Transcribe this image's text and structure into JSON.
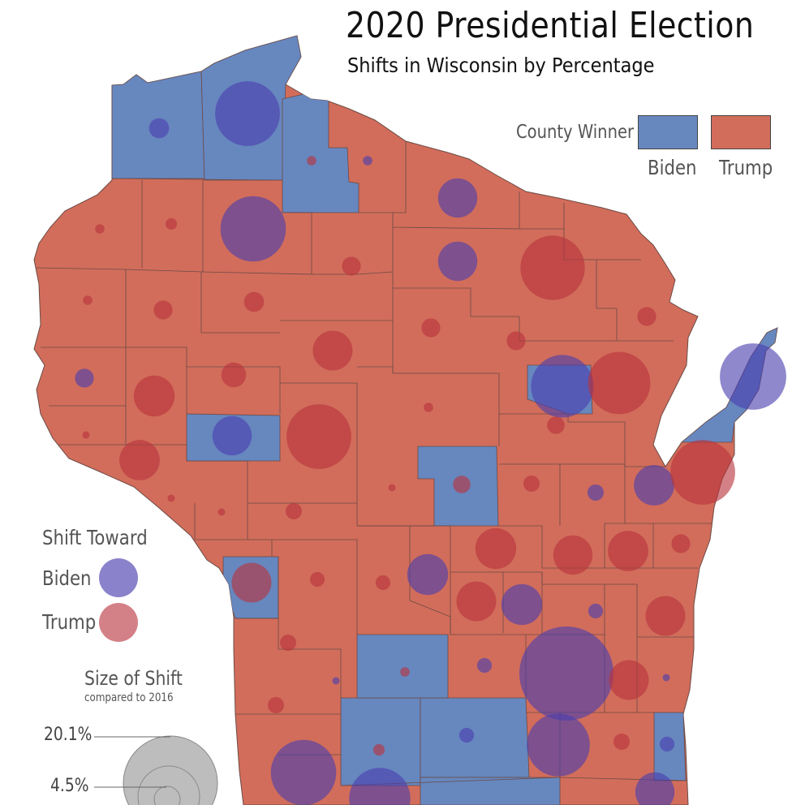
{
  "title": "2020 Presidential Election",
  "subtitle": "Shifts in Wisconsin by Percentage",
  "colors": {
    "biden_fill": "#6787bf",
    "trump_fill": "#d26d5b",
    "county_border": "#6b4a44",
    "shift_biden": "#4b3fae",
    "shift_trump": "#b8333d",
    "legend_circle": "#b9b9b9"
  },
  "legend": {
    "winner_title": "County Winner",
    "biden_label": "Biden",
    "trump_label": "Trump",
    "shift_title": "Shift Toward",
    "shift_biden_label": "Biden",
    "shift_trump_label": "Trump",
    "size_title": "Size of Shift",
    "size_subtitle": "compared to 2016",
    "size_values": [
      "20.1%",
      "4.5%"
    ]
  },
  "shift_bubbles": [
    {
      "toward": "Biden",
      "shift_pct": 0.9
    },
    {
      "toward": "Biden",
      "shift_pct": 9.5
    },
    {
      "toward": "Trump",
      "shift_pct": 0.2
    },
    {
      "toward": "Biden",
      "shift_pct": 0.2
    },
    {
      "toward": "Biden",
      "shift_pct": 3.5
    },
    {
      "toward": "Trump",
      "shift_pct": 0.2
    },
    {
      "toward": "Trump",
      "shift_pct": 0.3
    },
    {
      "toward": "Biden",
      "shift_pct": 9.7
    },
    {
      "toward": "Biden",
      "shift_pct": 3.5
    },
    {
      "toward": "Trump",
      "shift_pct": 0.8
    },
    {
      "toward": "Trump",
      "shift_pct": 9.4
    },
    {
      "toward": "Trump",
      "shift_pct": 0.2
    },
    {
      "toward": "Trump",
      "shift_pct": 0.8
    },
    {
      "toward": "Trump",
      "shift_pct": 0.9
    },
    {
      "toward": "Trump",
      "shift_pct": 0.8
    },
    {
      "toward": "Trump",
      "shift_pct": 0.8
    },
    {
      "toward": "Trump",
      "shift_pct": 0.8
    },
    {
      "toward": "Trump",
      "shift_pct": 3.6
    },
    {
      "toward": "Trump",
      "shift_pct": 1.4
    },
    {
      "toward": "Biden",
      "shift_pct": 0.8
    },
    {
      "toward": "Trump",
      "shift_pct": 3.8
    },
    {
      "toward": "Trump",
      "shift_pct": 0.2
    },
    {
      "toward": "Biden",
      "shift_pct": 8.9
    },
    {
      "toward": "Trump",
      "shift_pct": 8.8
    },
    {
      "toward": "Biden",
      "shift_pct": 10.0
    },
    {
      "toward": "Trump",
      "shift_pct": 0.1
    },
    {
      "toward": "Biden",
      "shift_pct": 3.5
    },
    {
      "toward": "Trump",
      "shift_pct": 0.7
    },
    {
      "toward": "Trump",
      "shift_pct": 9.5
    },
    {
      "toward": "Trump",
      "shift_pct": 0.1
    },
    {
      "toward": "Trump",
      "shift_pct": 3.7
    },
    {
      "toward": "Trump",
      "shift_pct": 0.7
    },
    {
      "toward": "Biden",
      "shift_pct": 0.6
    },
    {
      "toward": "Biden",
      "shift_pct": 3.7
    },
    {
      "toward": "Trump",
      "shift_pct": 9.5
    },
    {
      "toward": "Trump",
      "shift_pct": 0.1
    },
    {
      "toward": "Trump",
      "shift_pct": 0.1
    },
    {
      "toward": "Trump",
      "shift_pct": 0.6
    },
    {
      "toward": "Trump",
      "shift_pct": 0.6
    },
    {
      "toward": "Trump",
      "shift_pct": 3.5
    },
    {
      "toward": "Trump",
      "shift_pct": 3.8
    },
    {
      "toward": "Trump",
      "shift_pct": 3.7
    },
    {
      "toward": "Trump",
      "shift_pct": 0.8
    },
    {
      "toward": "Biden",
      "shift_pct": 3.8
    },
    {
      "toward": "Trump",
      "shift_pct": 0.5
    },
    {
      "toward": "Trump",
      "shift_pct": 0.5
    },
    {
      "toward": "Trump",
      "shift_pct": 3.6
    },
    {
      "toward": "Trump",
      "shift_pct": 3.6
    },
    {
      "toward": "Biden",
      "shift_pct": 3.8
    },
    {
      "toward": "Biden",
      "shift_pct": 0.5
    },
    {
      "toward": "Trump",
      "shift_pct": 0.6
    },
    {
      "toward": "Trump",
      "shift_pct": 3.6
    },
    {
      "toward": "Biden",
      "shift_pct": 0.1
    },
    {
      "toward": "Trump",
      "shift_pct": 0.2
    },
    {
      "toward": "Biden",
      "shift_pct": 0.5
    },
    {
      "toward": "Biden",
      "shift_pct": 20.1
    },
    {
      "toward": "Trump",
      "shift_pct": 3.6
    },
    {
      "toward": "Biden",
      "shift_pct": 0.1
    },
    {
      "toward": "Trump",
      "shift_pct": 0.6
    },
    {
      "toward": "Biden",
      "shift_pct": 0.5
    },
    {
      "toward": "Biden",
      "shift_pct": 9.0
    },
    {
      "toward": "Trump",
      "shift_pct": 0.6
    },
    {
      "toward": "Trump",
      "shift_pct": 0.3
    },
    {
      "toward": "Biden",
      "shift_pct": 0.5
    },
    {
      "toward": "Biden",
      "shift_pct": 9.7
    },
    {
      "toward": "Biden",
      "shift_pct": 8.5
    },
    {
      "toward": "Biden",
      "shift_pct": 3.5
    },
    {
      "toward": "Trump",
      "shift_pct": 3.5
    },
    {
      "toward": "Trump",
      "shift_pct": 6.0
    },
    {
      "toward": "Trump",
      "shift_pct": 0.1
    }
  ]
}
